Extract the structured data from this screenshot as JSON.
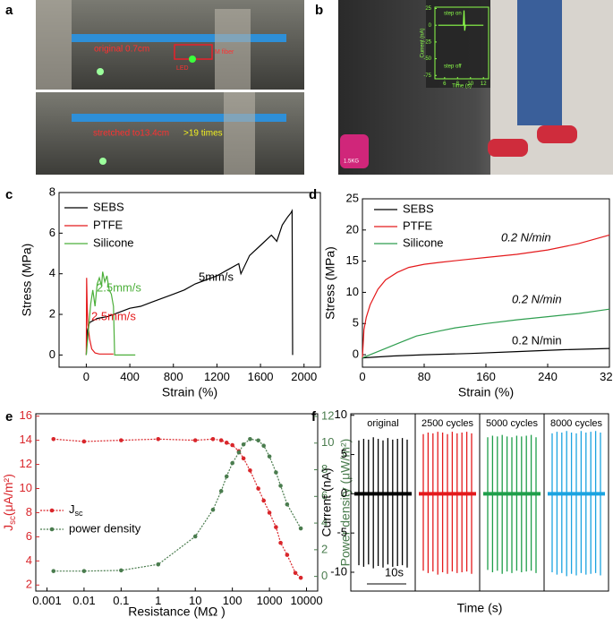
{
  "panel_labels": [
    "a",
    "b",
    "c",
    "d",
    "e",
    "f"
  ],
  "photo_a": {
    "original": "original 0.7cm",
    "led": "LED",
    "fiber": "M fiber",
    "stretched": "stretched to13.4cm",
    "times": ">19 times"
  },
  "photo_b": {
    "weight": "1.5KG"
  },
  "chart_data": [
    {
      "type": "line",
      "xlabel": "Time (s)",
      "ylabel": "Current (nA)",
      "axis_color": "#8cff4a",
      "xlim": [
        4.5,
        12.8
      ],
      "ylim": [
        -80,
        27
      ],
      "xticks": [
        6,
        8,
        10,
        12
      ],
      "yticks": [
        25,
        0,
        -25,
        -50,
        -75
      ],
      "annotations": [
        {
          "text": "step on",
          "color": "#8cff4a"
        },
        {
          "text": "step off",
          "color": "#8cff4a"
        }
      ],
      "series": [
        {
          "color": "#8cff4a",
          "x": [
            5,
            7,
            8.9,
            9.0,
            9.1,
            9.2,
            9.3,
            10,
            12
          ],
          "values": [
            0,
            0,
            0,
            22,
            -8,
            0,
            0,
            0,
            0
          ]
        }
      ]
    },
    {
      "type": "line",
      "xlabel": "Strain (%)",
      "ylabel": "Stress (MPa)",
      "xlim": [
        -250,
        2150
      ],
      "ylim": [
        -0.6,
        8
      ],
      "xticks": [
        0,
        400,
        800,
        1200,
        1600,
        2000
      ],
      "yticks": [
        0,
        2,
        4,
        6,
        8
      ],
      "annotations": [
        {
          "text": "5mm/s",
          "color": "#000000"
        },
        {
          "text": "2.5mm/s",
          "color": "#4caf3a"
        },
        {
          "text": "2.5mm/s",
          "color": "#e41a1c"
        }
      ],
      "series": [
        {
          "name": "SEBS",
          "color": "#000000",
          "x": [
            0,
            10,
            30,
            100,
            200,
            300,
            400,
            500,
            600,
            700,
            800,
            900,
            1000,
            1100,
            1200,
            1300,
            1400,
            1420,
            1500,
            1600,
            1700,
            1750,
            1800,
            1850,
            1880,
            1890,
            1895
          ],
          "values": [
            0,
            1.2,
            1.6,
            1.8,
            1.9,
            2.1,
            2.3,
            2.4,
            2.6,
            2.8,
            3.0,
            3.2,
            3.5,
            3.7,
            3.9,
            4.2,
            4.5,
            4.0,
            4.9,
            5.4,
            5.9,
            5.6,
            6.4,
            6.8,
            7.0,
            7.1,
            0
          ]
        },
        {
          "name": "PTFE",
          "color": "#e41a1c",
          "x": [
            0,
            3,
            8,
            15,
            30,
            50,
            80,
            120,
            180,
            250
          ],
          "values": [
            0,
            3.8,
            2.5,
            1.5,
            0.8,
            0.3,
            0.1,
            0.05,
            0.05,
            0.05
          ]
        },
        {
          "name": "Silicone",
          "color": "#4caf3a",
          "x": [
            0,
            20,
            40,
            60,
            80,
            100,
            120,
            140,
            150,
            170,
            190,
            210,
            230,
            250,
            260,
            300,
            450
          ],
          "values": [
            0,
            1.2,
            2.5,
            3.2,
            2.4,
            3.5,
            3.8,
            3.4,
            4.1,
            3.6,
            3.9,
            3.2,
            3.0,
            2.4,
            0,
            0,
            0
          ]
        }
      ]
    },
    {
      "type": "line",
      "xlabel": "Strain (%)",
      "ylabel": "Stress (MPa)",
      "xlim": [
        0,
        320
      ],
      "ylim": [
        -2,
        25
      ],
      "xticks": [
        0,
        80,
        160,
        240,
        320
      ],
      "yticks": [
        0,
        5,
        10,
        15,
        20,
        25
      ],
      "annotations": [
        {
          "text": "0.2 N/min",
          "color": "#000000"
        },
        {
          "text": "0.2 N/min",
          "color": "#000000"
        },
        {
          "text": "0.2 N/min",
          "color": "#000000"
        }
      ],
      "series": [
        {
          "name": "SEBS",
          "color": "#000000",
          "x": [
            0,
            40,
            80,
            140,
            200,
            260,
            320
          ],
          "values": [
            -0.5,
            -0.2,
            0,
            0.2,
            0.5,
            0.8,
            1.0
          ]
        },
        {
          "name": "PTFE",
          "color": "#e41a1c",
          "x": [
            0,
            2,
            5,
            10,
            20,
            30,
            45,
            60,
            80,
            100,
            130,
            160,
            200,
            240,
            280,
            320
          ],
          "values": [
            -0.5,
            4,
            6,
            8,
            10.5,
            12,
            13.2,
            14,
            14.5,
            14.8,
            15.2,
            15.6,
            16.1,
            16.8,
            17.8,
            19.2
          ]
        },
        {
          "name": "Silicone",
          "color": "#2e9e4f",
          "x": [
            0,
            10,
            30,
            50,
            70,
            100,
            120,
            160,
            200,
            240,
            280,
            320
          ],
          "values": [
            -0.5,
            0,
            1,
            2,
            3,
            3.8,
            4.3,
            5,
            5.6,
            6.1,
            6.6,
            7.3
          ]
        }
      ]
    },
    {
      "type": "line",
      "xscale": "log",
      "xlabel": "Resistance (MΩ )",
      "ylabel": "J",
      "ylabel_sub": "sc",
      "ylabel_unit": "(μA/m²)",
      "y2label": "Power density  (μW/m²)",
      "ycolor": "#d9262b",
      "y2color": "#4a7c4e",
      "markers": true,
      "xlim": [
        0.0005,
        20000
      ],
      "ylim": [
        1.5,
        16.2
      ],
      "y2lim": [
        -1.1,
        12.2
      ],
      "xticks": [
        0.001,
        0.01,
        0.1,
        1,
        10,
        100,
        1000,
        10000
      ],
      "yticks": [
        2,
        4,
        6,
        8,
        10,
        12,
        14,
        16
      ],
      "y2ticks": [
        0,
        2,
        4,
        6,
        8,
        10,
        12
      ],
      "series": [
        {
          "name": "J",
          "name_sub": "sc",
          "color": "#d9262b",
          "x": [
            0.0015,
            0.01,
            0.1,
            1,
            10,
            30,
            50,
            70,
            100,
            150,
            200,
            300,
            500,
            700,
            1000,
            1500,
            2000,
            3000,
            5000,
            7000
          ],
          "values": [
            14.1,
            13.9,
            14.0,
            14.1,
            14.0,
            14.1,
            14.0,
            13.8,
            13.6,
            13.1,
            12.5,
            11.5,
            10,
            9,
            8,
            6.8,
            5.5,
            4.5,
            3,
            2.6
          ]
        },
        {
          "name": "power density",
          "color": "#4a7c4e",
          "axis": "y2",
          "x": [
            0.0015,
            0.01,
            0.1,
            1,
            10,
            30,
            50,
            70,
            100,
            150,
            200,
            300,
            500,
            700,
            1000,
            1500,
            2000,
            3000,
            7000
          ],
          "values": [
            0.4,
            0.4,
            0.45,
            0.9,
            3,
            5,
            6.4,
            7.5,
            8.5,
            9.3,
            9.9,
            10.3,
            10.2,
            9.8,
            9.0,
            7.8,
            6.8,
            5.4,
            3.6
          ]
        }
      ]
    },
    {
      "type": "spikes",
      "xlabel": "Time (s)",
      "ylabel": "Current (nA)",
      "ylim": [
        -12.4,
        10.2
      ],
      "yticks": [
        -10,
        -5,
        0,
        5,
        10
      ],
      "annotations": [
        {
          "text": "10s",
          "color": "#000000"
        }
      ],
      "series": [
        {
          "name": "original",
          "color": "#000000",
          "peaks": [
            6.8,
            7.0,
            6.9,
            7.2,
            7.0,
            6.8,
            7.1,
            6.9,
            7.0,
            7.1,
            6.9
          ],
          "troughs": [
            -9.1,
            -9.3,
            -9.0,
            -9.5,
            -9.2,
            -9.4,
            -9.0,
            -9.3,
            -9.2,
            -9.1,
            -9.4
          ]
        },
        {
          "name": "2500 cycles",
          "color": "#e41a1c",
          "peaks": [
            7.6,
            7.8,
            7.7,
            7.9,
            7.8,
            7.6,
            7.9,
            7.7,
            7.8,
            7.9,
            7.7
          ],
          "troughs": [
            -9.8,
            -10.1,
            -9.9,
            -10.3,
            -10.0,
            -10.2,
            -9.9,
            -10.1,
            -10.0,
            -9.9,
            -10.2
          ]
        },
        {
          "name": "5000 cycles",
          "color": "#1e9e4a",
          "peaks": [
            7.2,
            7.4,
            7.3,
            7.5,
            7.3,
            7.2,
            7.4,
            7.3,
            7.4,
            7.5,
            7.2
          ],
          "troughs": [
            -9.7,
            -10.0,
            -9.8,
            -10.2,
            -9.9,
            -10.1,
            -9.8,
            -10.0,
            -9.9,
            -9.8,
            -10.1
          ]
        },
        {
          "name": "8000 cycles",
          "color": "#1ba3e0",
          "peaks": [
            7.7,
            7.9,
            7.8,
            8.0,
            7.8,
            7.7,
            8.0,
            7.8,
            7.9,
            8.0,
            7.8
          ],
          "troughs": [
            -10.0,
            -10.3,
            -10.1,
            -10.5,
            -10.2,
            -10.4,
            -10.1,
            -10.3,
            -10.2,
            -10.1,
            -10.4
          ]
        }
      ]
    }
  ]
}
